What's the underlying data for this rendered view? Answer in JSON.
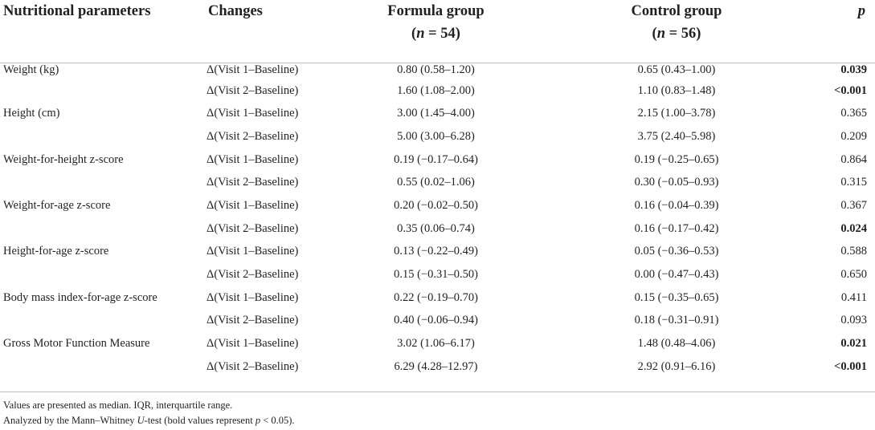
{
  "header": {
    "col1": "Nutritional parameters",
    "col2": "Changes",
    "col3": "Formula group",
    "col3_n": "(n = 54)",
    "col3_n_var": "n",
    "col3_n_rest": " = 54",
    "col4": "Control group",
    "col4_n_var": "n",
    "col4_n_rest": " = 56",
    "col5": "p"
  },
  "rows": [
    {
      "param": "Weight (kg)",
      "change": "Δ(Visit 1–Baseline)",
      "formula": "0.80 (0.58–1.20)",
      "control": "0.65 (0.43–1.00)",
      "p": "0.039",
      "bold": true
    },
    {
      "param": "",
      "change": "Δ(Visit 2–Baseline)",
      "formula": "1.60 (1.08–2.00)",
      "control": "1.10 (0.83–1.48)",
      "p": "<0.001",
      "bold": true
    },
    {
      "param": "Height (cm)",
      "change": "Δ(Visit 1–Baseline)",
      "formula": "3.00 (1.45–4.00)",
      "control": "2.15 (1.00–3.78)",
      "p": "0.365",
      "bold": false
    },
    {
      "param": "",
      "change": "Δ(Visit 2–Baseline)",
      "formula": "5.00 (3.00–6.28)",
      "control": "3.75 (2.40–5.98)",
      "p": "0.209",
      "bold": false
    },
    {
      "param": "Weight-for-height z-score",
      "change": "Δ(Visit 1–Baseline)",
      "formula": "0.19 (−0.17–0.64)",
      "control": "0.19 (−0.25–0.65)",
      "p": "0.864",
      "bold": false
    },
    {
      "param": "",
      "change": "Δ(Visit 2–Baseline)",
      "formula": "0.55 (0.02–1.06)",
      "control": "0.30 (−0.05–0.93)",
      "p": "0.315",
      "bold": false
    },
    {
      "param": "Weight-for-age z-score",
      "change": "Δ(Visit 1–Baseline)",
      "formula": "0.20 (−0.02–0.50)",
      "control": "0.16 (−0.04–0.39)",
      "p": "0.367",
      "bold": false
    },
    {
      "param": "",
      "change": "Δ(Visit 2–Baseline)",
      "formula": "0.35 (0.06–0.74)",
      "control": "0.16 (−0.17–0.42)",
      "p": "0.024",
      "bold": true
    },
    {
      "param": "Height-for-age z-score",
      "change": "Δ(Visit 1–Baseline)",
      "formula": "0.13 (−0.22–0.49)",
      "control": "0.05 (−0.36–0.53)",
      "p": "0.588",
      "bold": false
    },
    {
      "param": "",
      "change": "Δ(Visit 2–Baseline)",
      "formula": "0.15 (−0.31–0.50)",
      "control": "0.00 (−0.47–0.43)",
      "p": "0.650",
      "bold": false
    },
    {
      "param": "Body mass index-for-age z-score",
      "change": "Δ(Visit 1–Baseline)",
      "formula": "0.22 (−0.19–0.70)",
      "control": "0.15 (−0.35–0.65)",
      "p": "0.411",
      "bold": false
    },
    {
      "param": "",
      "change": "Δ(Visit 2–Baseline)",
      "formula": "0.40 (−0.06–0.94)",
      "control": "0.18 (−0.31–0.91)",
      "p": "0.093",
      "bold": false
    },
    {
      "param": "Gross Motor Function Measure",
      "change": "Δ(Visit 1–Baseline)",
      "formula": "3.02 (1.06–6.17)",
      "control": "1.48 (0.48–4.06)",
      "p": "0.021",
      "bold": true
    },
    {
      "param": "",
      "change": "Δ(Visit 2–Baseline)",
      "formula": "6.29 (4.28–12.97)",
      "control": "2.92 (0.91–6.16)",
      "p": "<0.001",
      "bold": true
    }
  ],
  "notes": {
    "line1": "Values are presented as median. IQR, interquartile range.",
    "line2_a": "Analyzed by the Mann–Whitney ",
    "line2_u": "U",
    "line2_b": "-test (bold values represent ",
    "line2_p": "p",
    "line2_c": " < 0.05)."
  }
}
